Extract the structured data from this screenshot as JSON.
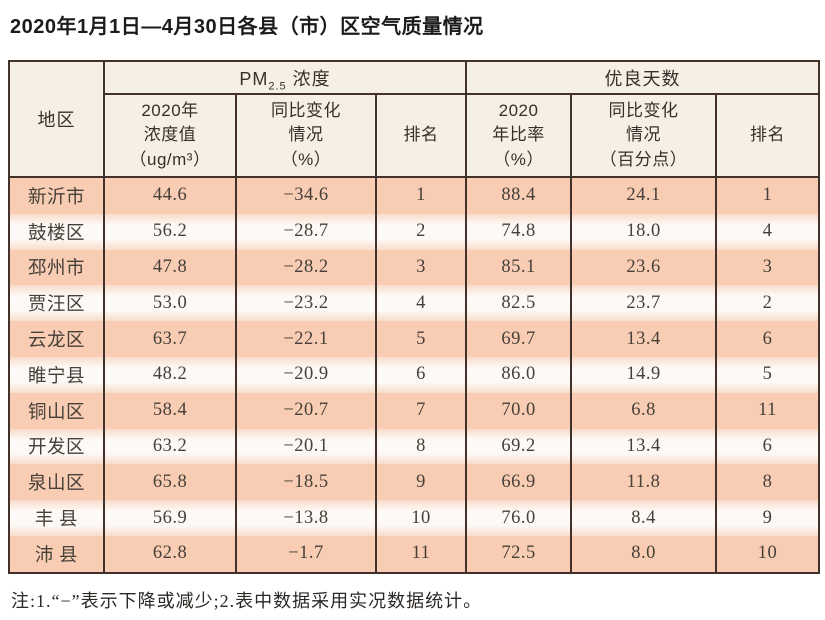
{
  "title": "2020年1月1日—4月30日各县（市）区空气质量情况",
  "footnote": "注:1.“−”表示下降或减少;2.表中数据采用实况数据统计。",
  "display": {
    "header": {
      "region": "地区",
      "pm25_group": {
        "prefix": "PM",
        "subscript": "2.5",
        "suffix": " 浓度"
      },
      "good_days_group": "优良天数",
      "sub_headers": [
        "2020年\n浓度值\n（ug/m³）",
        "同比变化\n情况\n（%）",
        "排名",
        "2020\n年比率\n（%）",
        "同比变化\n情况\n（百分点）",
        "排名"
      ]
    }
  },
  "colors": {
    "border": "#42322b",
    "header_bg": "#f6efe3",
    "row_odd_bg": "#f8cdb4",
    "row_even_center": "#fdf9f6",
    "row_even_edge": "#f8dcca",
    "text": "#474039"
  },
  "chart_data": {
    "type": "table",
    "title": "2020年1月1日—4月30日各县（市）区空气质量情况",
    "column_groups": [
      "地区",
      "PM2.5浓度",
      "优良天数"
    ],
    "columns": [
      "地区",
      "2020年浓度值（ug/m³）",
      "同比变化情况（%）",
      "排名",
      "2020年比率（%）",
      "同比变化情况（百分点）",
      "排名"
    ],
    "rows": [
      [
        "新沂市",
        "44.6",
        "−34.6",
        "1",
        "88.4",
        "24.1",
        "1"
      ],
      [
        "鼓楼区",
        "56.2",
        "−28.7",
        "2",
        "74.8",
        "18.0",
        "4"
      ],
      [
        "邳州市",
        "47.8",
        "−28.2",
        "3",
        "85.1",
        "23.6",
        "3"
      ],
      [
        "贾汪区",
        "53.0",
        "−23.2",
        "4",
        "82.5",
        "23.7",
        "2"
      ],
      [
        "云龙区",
        "63.7",
        "−22.1",
        "5",
        "69.7",
        "13.4",
        "6"
      ],
      [
        "睢宁县",
        "48.2",
        "−20.9",
        "6",
        "86.0",
        "14.9",
        "5"
      ],
      [
        "铜山区",
        "58.4",
        "−20.7",
        "7",
        "70.0",
        "6.8",
        "11"
      ],
      [
        "开发区",
        "63.2",
        "−20.1",
        "8",
        "69.2",
        "13.4",
        "6"
      ],
      [
        "泉山区",
        "65.8",
        "−18.5",
        "9",
        "66.9",
        "11.8",
        "8"
      ],
      [
        "丰 县",
        "56.9",
        "−13.8",
        "10",
        "76.0",
        "8.4",
        "9"
      ],
      [
        "沛 县",
        "62.8",
        "−1.7",
        "11",
        "72.5",
        "8.0",
        "10"
      ]
    ],
    "footnote": "注:1.“−”表示下降或减少;2.表中数据采用实况数据统计。"
  }
}
